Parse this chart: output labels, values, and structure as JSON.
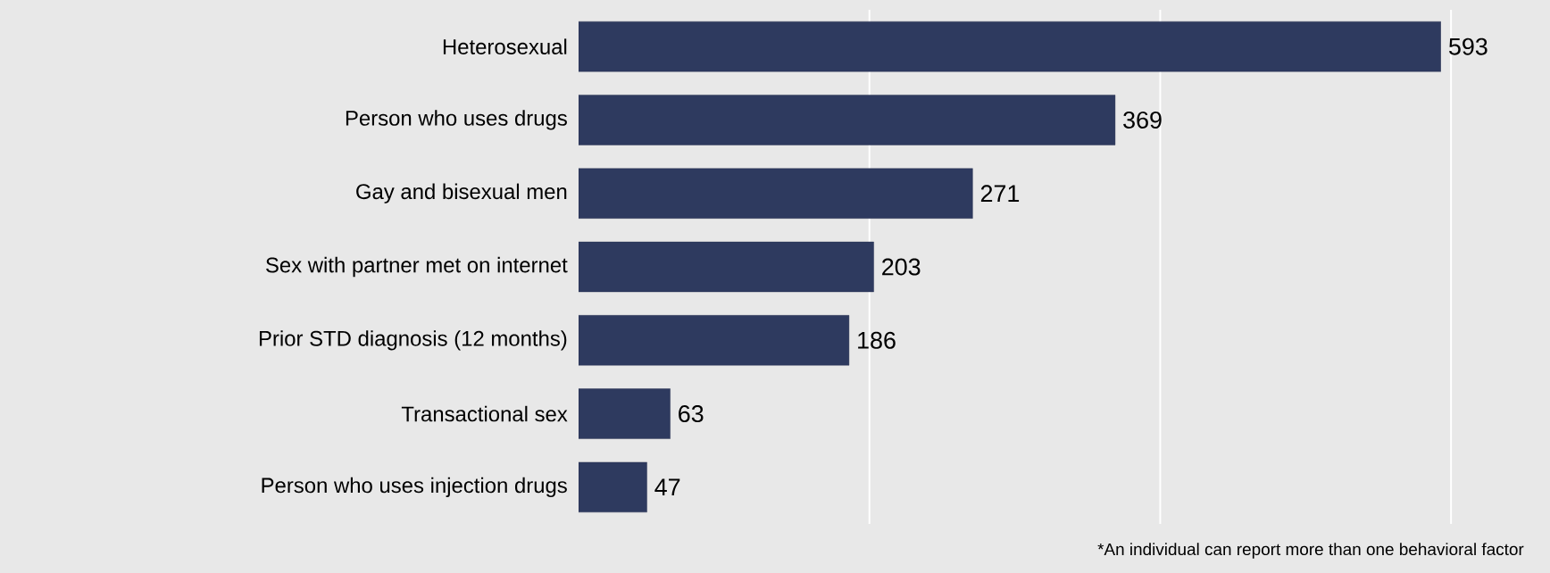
{
  "chart_data": {
    "type": "bar",
    "orientation": "horizontal",
    "categories": [
      "Heterosexual",
      "Person who uses drugs",
      "Gay and bisexual men",
      "Sex with partner met on internet",
      "Prior STD diagnosis (12 months)",
      "Transactional sex",
      "Person who uses injection drugs"
    ],
    "values": [
      593,
      369,
      271,
      203,
      186,
      63,
      47
    ],
    "color": "#2e3a5f",
    "data_labels": true,
    "ref_lines": [
      {
        "axis": "x",
        "value": 200,
        "color": "#ffffff"
      },
      {
        "axis": "x",
        "value": 400,
        "color": "#ffffff"
      },
      {
        "axis": "x",
        "value": 600,
        "color": "#ffffff"
      }
    ],
    "tick_labels": "y",
    "annotations": [
      "*An individual can report more than one behavioral factor"
    ]
  }
}
